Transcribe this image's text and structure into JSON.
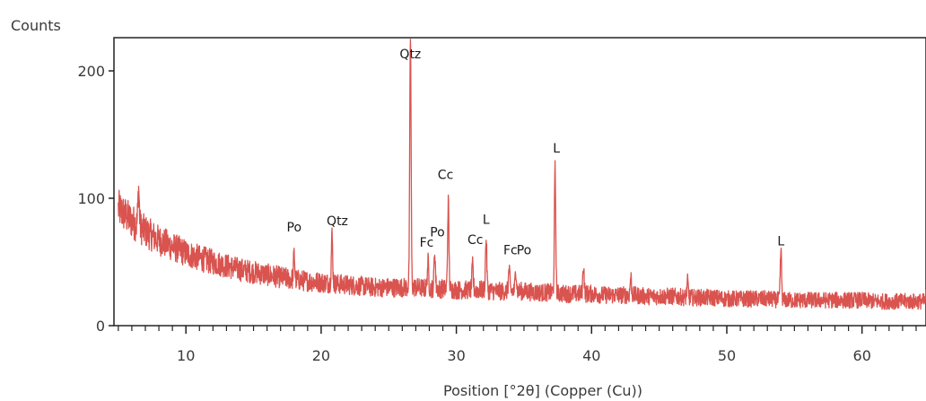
{
  "chart_data": {
    "type": "line",
    "ylabel": "Counts",
    "xlabel": "Position [°2θ] (Copper (Cu))",
    "xlim": [
      5,
      65
    ],
    "ylim": [
      0,
      230
    ],
    "x_ticks": [
      10,
      20,
      30,
      40,
      50,
      60
    ],
    "y_ticks": [
      0,
      100,
      200
    ],
    "grid": false,
    "line_color": "#d9534f",
    "series": [
      {
        "background": {
          "x": [
            5,
            6,
            7,
            8,
            9,
            10,
            11,
            12,
            13,
            14,
            15,
            16,
            17,
            18,
            19,
            20,
            21,
            22,
            23,
            24,
            25,
            26,
            27,
            28,
            29,
            30,
            31,
            32,
            33,
            34,
            35,
            36,
            37,
            38,
            39,
            40,
            41,
            42,
            43,
            44,
            45,
            46,
            47,
            48,
            49,
            50,
            51,
            52,
            53,
            54,
            55,
            56,
            57,
            58,
            59,
            60,
            61,
            62,
            63,
            64,
            65
          ],
          "y": [
            92,
            82,
            74,
            67,
            62,
            57,
            53,
            50,
            47,
            44,
            42,
            40,
            38,
            36,
            35,
            34,
            33,
            32,
            31,
            30,
            30,
            30,
            30,
            29,
            29,
            28,
            28,
            28,
            27,
            27,
            27,
            26,
            26,
            25,
            25,
            25,
            24,
            24,
            24,
            23,
            23,
            23,
            22,
            22,
            22,
            21,
            21,
            21,
            21,
            20,
            20,
            20,
            20,
            20,
            20,
            20,
            19,
            19,
            19,
            19,
            19
          ]
        },
        "peaks": [
          {
            "x": 6.5,
            "y": 108
          },
          {
            "x": 18.0,
            "y": 56
          },
          {
            "x": 20.8,
            "y": 71
          },
          {
            "x": 26.6,
            "y": 228
          },
          {
            "x": 27.9,
            "y": 50
          },
          {
            "x": 28.4,
            "y": 58
          },
          {
            "x": 29.4,
            "y": 97
          },
          {
            "x": 31.2,
            "y": 47
          },
          {
            "x": 32.2,
            "y": 68
          },
          {
            "x": 33.9,
            "y": 44
          },
          {
            "x": 34.4,
            "y": 44
          },
          {
            "x": 37.3,
            "y": 123
          },
          {
            "x": 39.4,
            "y": 48
          },
          {
            "x": 42.9,
            "y": 38
          },
          {
            "x": 47.1,
            "y": 34
          },
          {
            "x": 54.0,
            "y": 59
          },
          {
            "x": 64.8,
            "y": 32
          }
        ]
      }
    ],
    "annotations": [
      {
        "text": "Qtz",
        "x": 26.6,
        "y": 210
      },
      {
        "text": "Cc",
        "x": 29.2,
        "y": 115
      },
      {
        "text": "L",
        "x": 37.4,
        "y": 136
      },
      {
        "text": "Po",
        "x": 18.0,
        "y": 74
      },
      {
        "text": "Qtz",
        "x": 21.2,
        "y": 79
      },
      {
        "text": "Po",
        "x": 28.6,
        "y": 70
      },
      {
        "text": "Fc",
        "x": 27.8,
        "y": 62
      },
      {
        "text": "L",
        "x": 32.2,
        "y": 80
      },
      {
        "text": "Cc",
        "x": 31.4,
        "y": 64
      },
      {
        "text": "Fc",
        "x": 34.0,
        "y": 56
      },
      {
        "text": "Po",
        "x": 35.0,
        "y": 56
      },
      {
        "text": "L",
        "x": 54.0,
        "y": 63
      }
    ]
  }
}
